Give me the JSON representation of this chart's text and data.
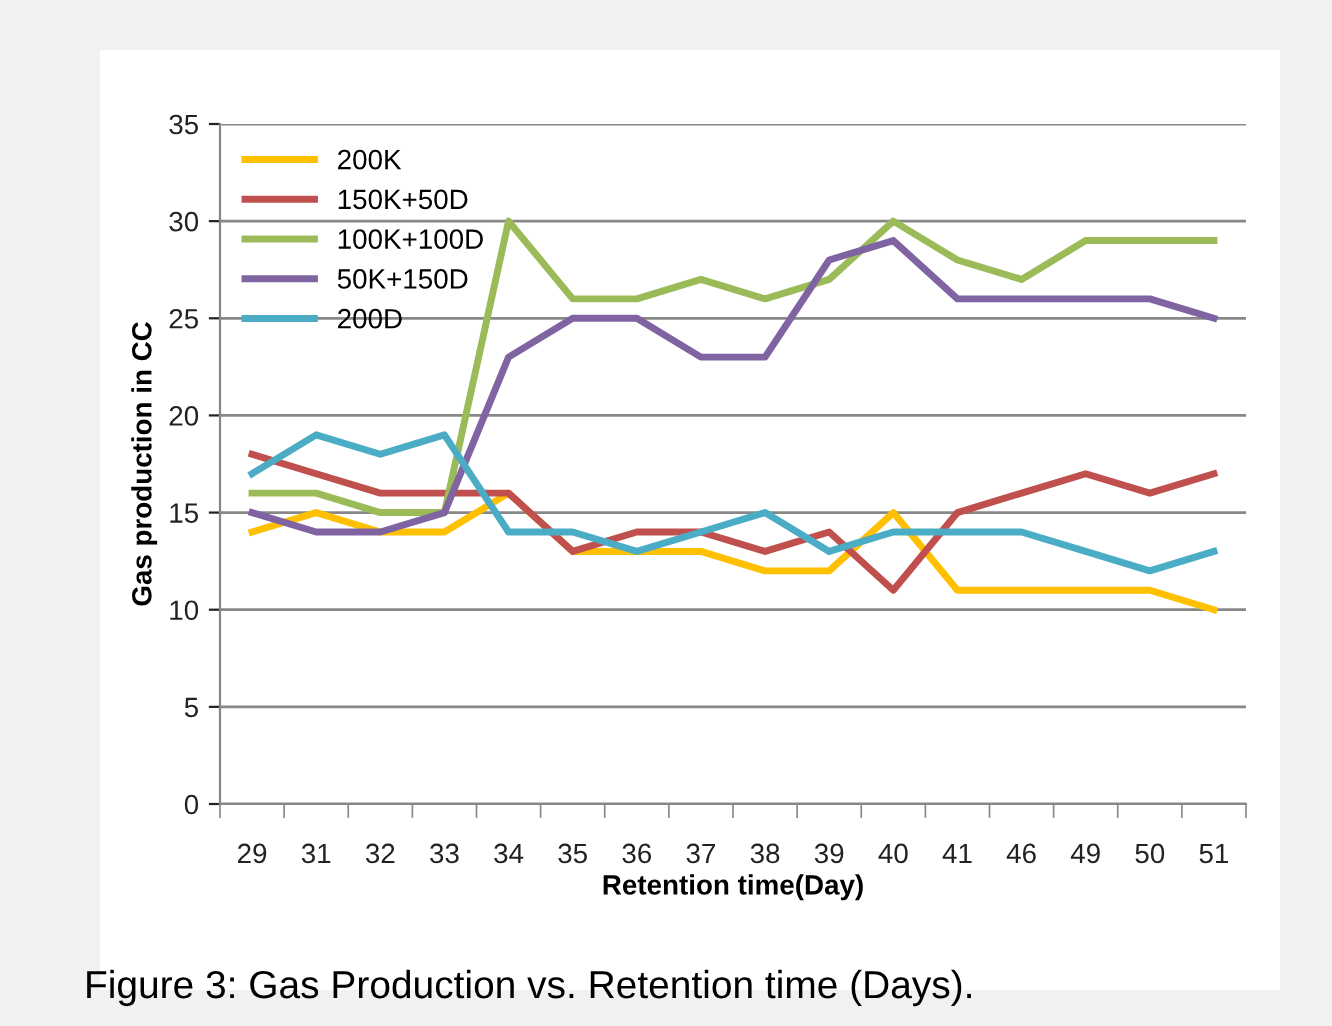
{
  "chart_data": {
    "type": "line",
    "xlabel": "Retention time(Day)",
    "ylabel": "Gas production in CC",
    "categories": [
      "29",
      "31",
      "32",
      "33",
      "34",
      "35",
      "36",
      "37",
      "38",
      "39",
      "40",
      "41",
      "46",
      "49",
      "50",
      "51"
    ],
    "series": [
      {
        "name": "200K",
        "color": "#ffc000",
        "values": [
          14,
          15,
          14,
          14,
          16,
          13,
          13,
          13,
          12,
          12,
          15,
          11,
          11,
          11,
          11,
          10
        ]
      },
      {
        "name": "150K+50D",
        "color": "#c0504d",
        "values": [
          18,
          17,
          16,
          16,
          16,
          13,
          14,
          14,
          13,
          14,
          11,
          15,
          16,
          17,
          16,
          17
        ]
      },
      {
        "name": "100K+100D",
        "color": "#9bbb59",
        "values": [
          16,
          16,
          15,
          15,
          30,
          26,
          26,
          27,
          26,
          27,
          30,
          28,
          27,
          29,
          29,
          29
        ]
      },
      {
        "name": "50K+150D",
        "color": "#8064a2",
        "values": [
          15,
          14,
          14,
          15,
          23,
          25,
          25,
          23,
          23,
          28,
          29,
          26,
          26,
          26,
          26,
          25
        ]
      },
      {
        "name": "200D",
        "color": "#4bacc6",
        "values": [
          17,
          19,
          18,
          19,
          14,
          14,
          13,
          14,
          15,
          13,
          14,
          14,
          14,
          13,
          12,
          13
        ]
      }
    ],
    "ylim": [
      0,
      35
    ],
    "yticks": [
      0,
      5,
      10,
      15,
      20,
      25,
      30,
      35
    ],
    "grid": "y",
    "legend": "top left",
    "annotations": [
      "Figure 3: Gas Production vs. Retention time (Days)."
    ]
  }
}
